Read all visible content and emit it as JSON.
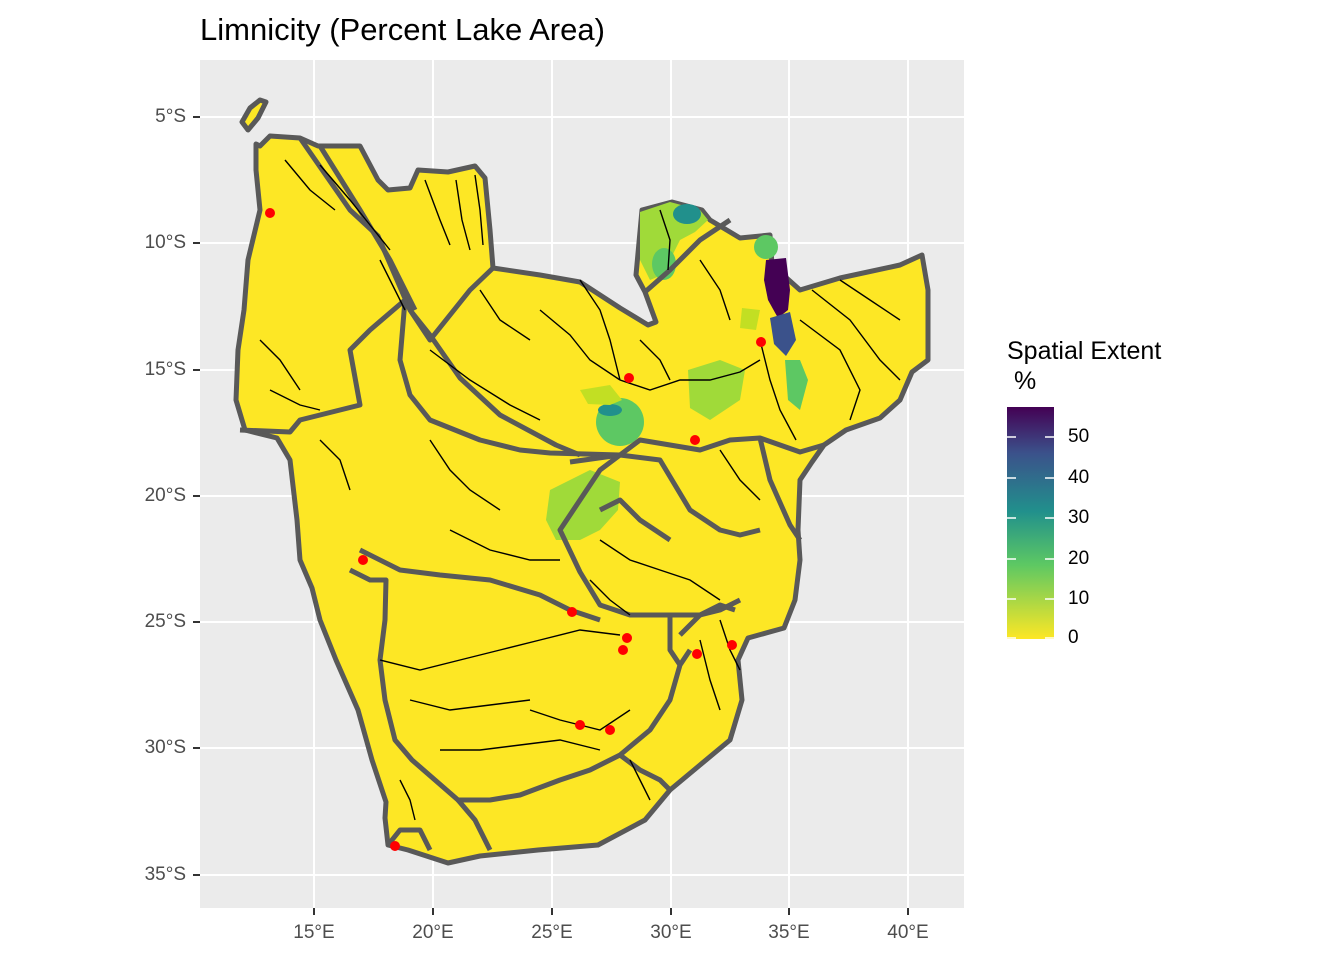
{
  "title": "Limnicity (Percent Lake Area)",
  "axes": {
    "y_ticks": [
      "5°S",
      "10°S",
      "15°S",
      "20°S",
      "25°S",
      "30°S",
      "35°S"
    ],
    "x_ticks": [
      "15°E",
      "20°E",
      "25°E",
      "30°E",
      "35°E",
      "40°E"
    ]
  },
  "legend": {
    "title": "Spatial Extent\n %",
    "labels": [
      "50",
      "40",
      "30",
      "20",
      "10",
      "0"
    ],
    "colors": [
      "#440154",
      "#3b528b",
      "#21908c",
      "#5dc863",
      "#fde725"
    ]
  },
  "colors": {
    "land": "#fde725",
    "basin_border": "#595959",
    "rivers": "#000000",
    "sites": "#ff0000",
    "panel_bg": "#ebebeb",
    "grid": "#ffffff"
  }
}
